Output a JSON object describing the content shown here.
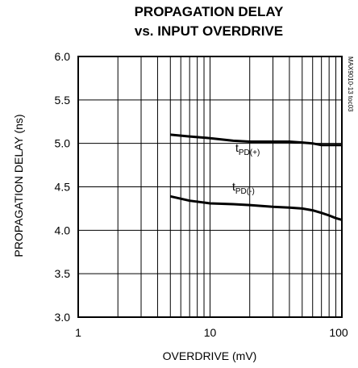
{
  "chart_data": {
    "type": "line",
    "title_lines": [
      "PROPAGATION DELAY",
      "vs. INPUT OVERDRIVE"
    ],
    "xlabel": "OVERDRIVE (mV)",
    "ylabel": "PROPAGATION DELAY (ns)",
    "x_scale": "log",
    "xlim": [
      1,
      100
    ],
    "ylim": [
      3.0,
      6.0
    ],
    "x_ticks": [
      1,
      10,
      100
    ],
    "x_tick_labels": [
      "1",
      "10",
      "100"
    ],
    "y_ticks": [
      3.0,
      3.5,
      4.0,
      4.5,
      5.0,
      5.5,
      6.0
    ],
    "y_tick_labels": [
      "3.0",
      "3.5",
      "4.0",
      "4.5",
      "5.0",
      "5.5",
      "6.0"
    ],
    "grid": true,
    "reference_code": "MAX9010-13 toc03",
    "series": [
      {
        "label_main": "t",
        "label_sub": "PD(+)",
        "x": [
          5,
          7,
          10,
          15,
          20,
          30,
          40,
          50,
          60,
          70,
          80,
          90,
          100
        ],
        "y": [
          5.1,
          5.08,
          5.06,
          5.03,
          5.02,
          5.02,
          5.02,
          5.01,
          5.0,
          4.98,
          4.98,
          4.98,
          4.98
        ]
      },
      {
        "label_main": "t",
        "label_sub": "PD(-)",
        "x": [
          5,
          7,
          10,
          15,
          20,
          30,
          40,
          50,
          60,
          70,
          80,
          90,
          100
        ],
        "y": [
          4.39,
          4.34,
          4.31,
          4.3,
          4.29,
          4.27,
          4.26,
          4.25,
          4.23,
          4.2,
          4.17,
          4.14,
          4.12
        ]
      }
    ],
    "colors": {
      "line": "#000000",
      "grid": "#000000",
      "background": "#ffffff"
    }
  }
}
